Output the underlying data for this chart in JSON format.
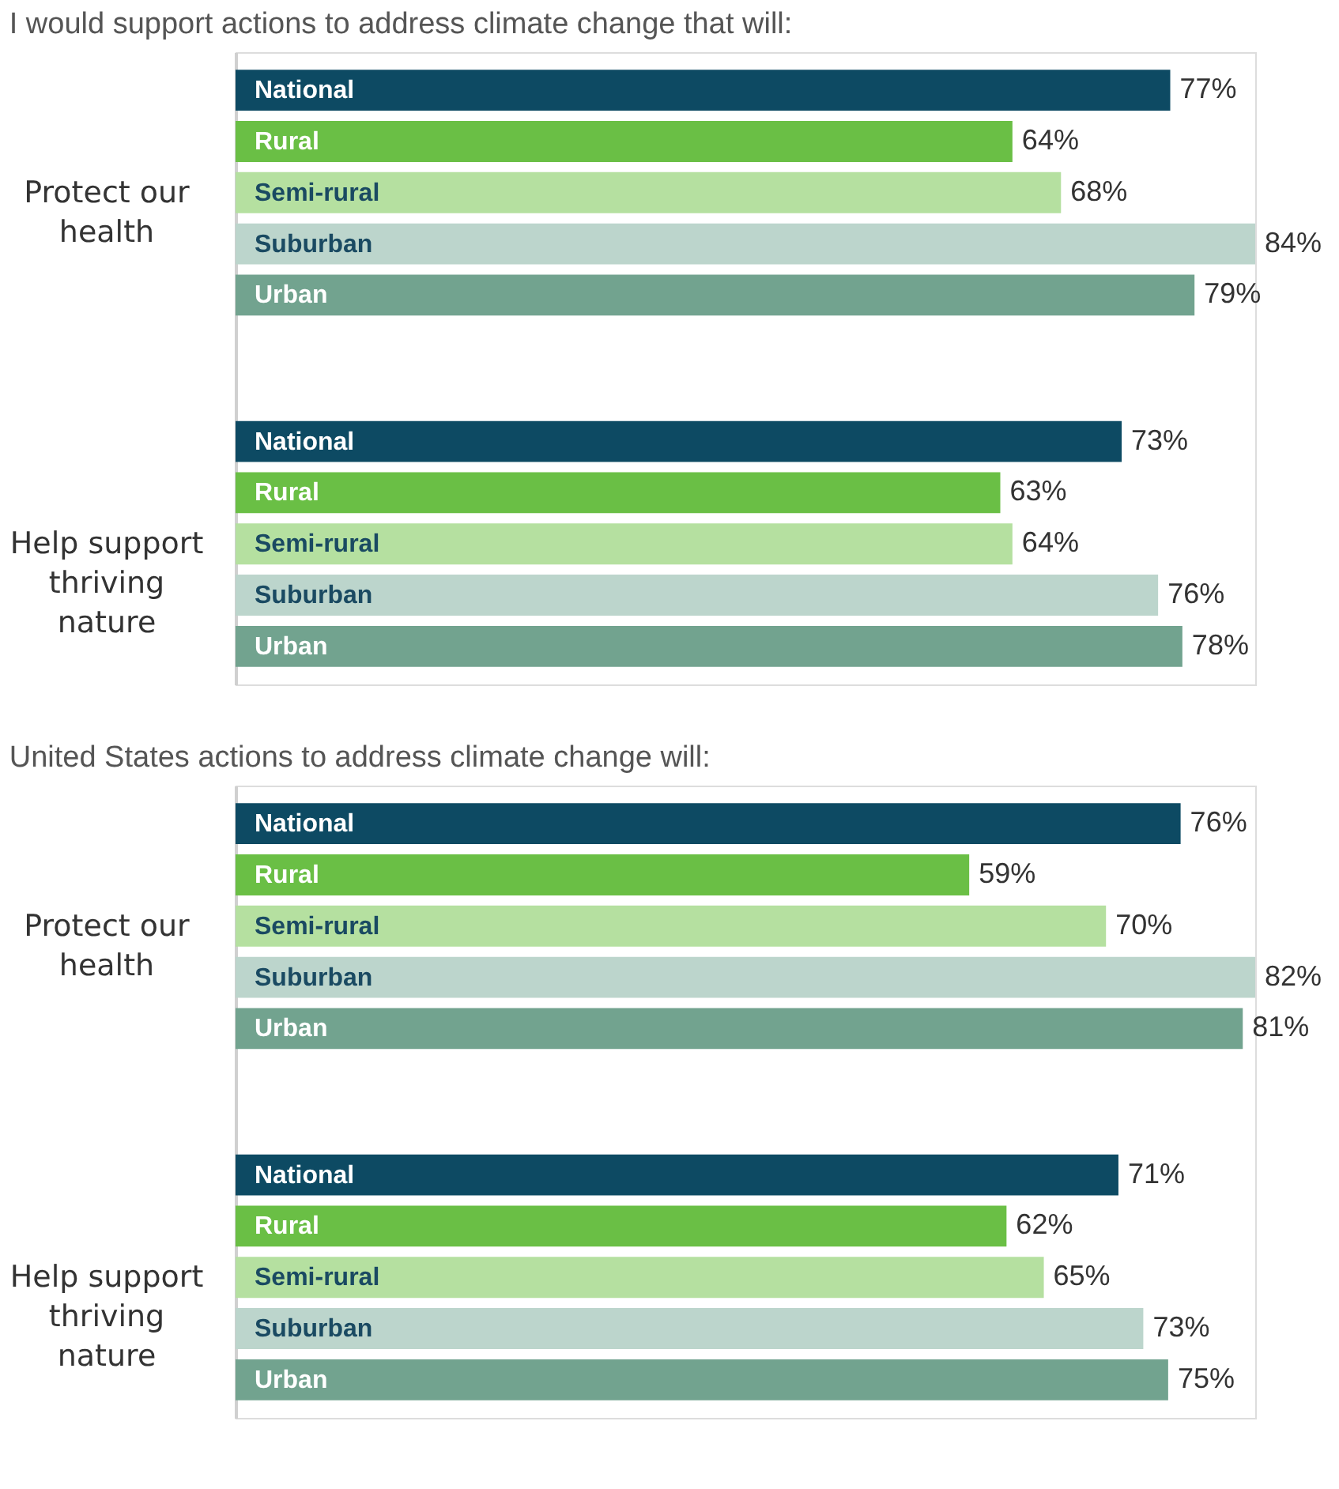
{
  "chart_data": [
    {
      "type": "bar",
      "orientation": "horizontal",
      "title": "I would support actions to address climate change that will:",
      "categories": [
        "Protect our health",
        "Help support thriving nature"
      ],
      "series": [
        {
          "name": "National",
          "color": "#0d4a63",
          "values": [
            77,
            73
          ],
          "value_labels": [
            "77%",
            "73%"
          ]
        },
        {
          "name": "Rural",
          "color": "#6abf45",
          "values": [
            64,
            63
          ],
          "value_labels": [
            "64%",
            "63%"
          ]
        },
        {
          "name": "Semi-rural",
          "color": "#b5e0a0",
          "values": [
            68,
            64
          ],
          "value_labels": [
            "68%",
            "64%"
          ]
        },
        {
          "name": "Suburban",
          "color": "#bcd5cc",
          "values": [
            84,
            76
          ],
          "value_labels": [
            "84%",
            "76%"
          ]
        },
        {
          "name": "Urban",
          "color": "#72a38f",
          "values": [
            79,
            78
          ],
          "value_labels": [
            "79%",
            "78%"
          ]
        }
      ]
    },
    {
      "type": "bar",
      "orientation": "horizontal",
      "title": "United States actions to address climate change will:",
      "categories": [
        "Protect our health",
        "Help support thriving nature"
      ],
      "series": [
        {
          "name": "National",
          "color": "#0d4a63",
          "values": [
            76,
            71
          ],
          "value_labels": [
            "76%",
            "71%"
          ]
        },
        {
          "name": "Rural",
          "color": "#6abf45",
          "values": [
            59,
            62
          ],
          "value_labels": [
            "59%",
            "62%"
          ]
        },
        {
          "name": "Semi-rural",
          "color": "#b5e0a0",
          "values": [
            70,
            65
          ],
          "value_labels": [
            "70%",
            "65%"
          ]
        },
        {
          "name": "Suburban",
          "color": "#bcd5cc",
          "values": [
            82,
            73
          ],
          "value_labels": [
            "82%",
            "73%"
          ]
        },
        {
          "name": "Urban",
          "color": "#72a38f",
          "values": [
            81,
            75
          ],
          "value_labels": [
            "81%",
            "75%"
          ]
        }
      ]
    }
  ]
}
